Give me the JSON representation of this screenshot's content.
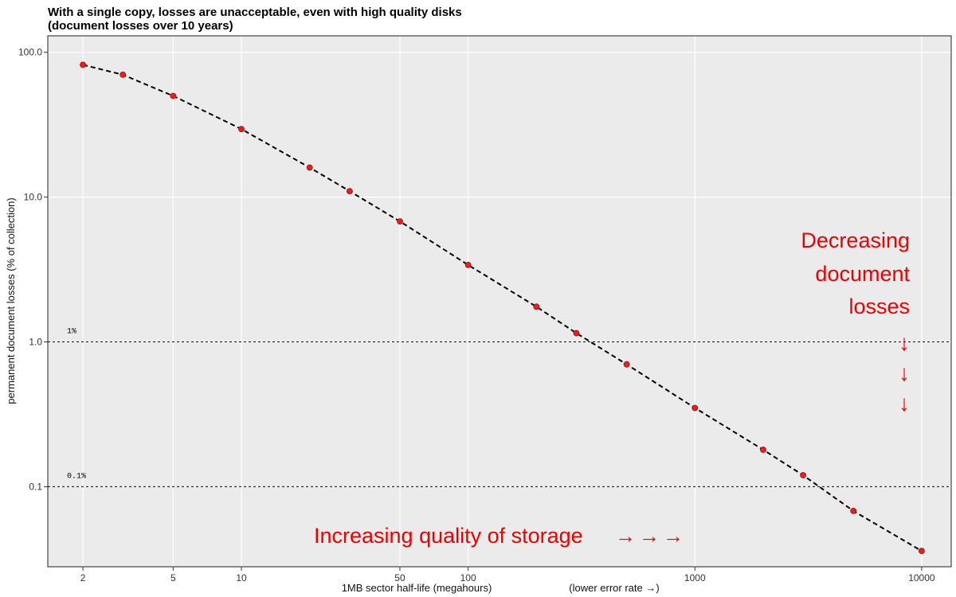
{
  "chart_data": {
    "type": "scatter",
    "title_lines": [
      "With a single copy, losses are unacceptable, even with high quality disks",
      "(document losses over 10 years)"
    ],
    "xlabel": "1MB sector half-life (megahours)",
    "xlabel_note": "(lower error rate →)",
    "ylabel": "permanent document losses (% of collection)",
    "x_scale": "log",
    "y_scale": "log",
    "xlim": [
      1.4,
      13500
    ],
    "ylim": [
      0.028,
      130
    ],
    "x_ticks": [
      2,
      5,
      10,
      50,
      100,
      1000,
      10000
    ],
    "x_tick_labels": [
      "2",
      "5",
      "10",
      "50",
      "100",
      "1000",
      "10000"
    ],
    "y_ticks": [
      0.1,
      1,
      10,
      100
    ],
    "y_tick_labels": [
      "0.1",
      "1.0",
      "10.0",
      "100.0"
    ],
    "grid": true,
    "points": {
      "x": [
        2,
        3,
        5,
        10,
        20,
        30,
        50,
        100,
        200,
        300,
        500,
        1000,
        2000,
        3000,
        5000,
        10000
      ],
      "y": [
        82,
        70,
        50,
        29.5,
        16,
        11,
        6.8,
        3.4,
        1.75,
        1.15,
        0.7,
        0.35,
        0.18,
        0.12,
        0.068,
        0.036
      ]
    },
    "point_color": "#ee1c1c",
    "curve_style": "dashed black",
    "reference_lines": [
      {
        "y": 1,
        "label": "1%"
      },
      {
        "y": 0.1,
        "label": "0.1%"
      }
    ],
    "annotations": {
      "vertical_lines": [
        "Decreasing",
        "document",
        "losses"
      ],
      "vertical_arrows": "↓\n↓\n↓",
      "horizontal": "Increasing quality of storage",
      "horizontal_arrows": "→→→",
      "color": "#ee0000"
    }
  }
}
